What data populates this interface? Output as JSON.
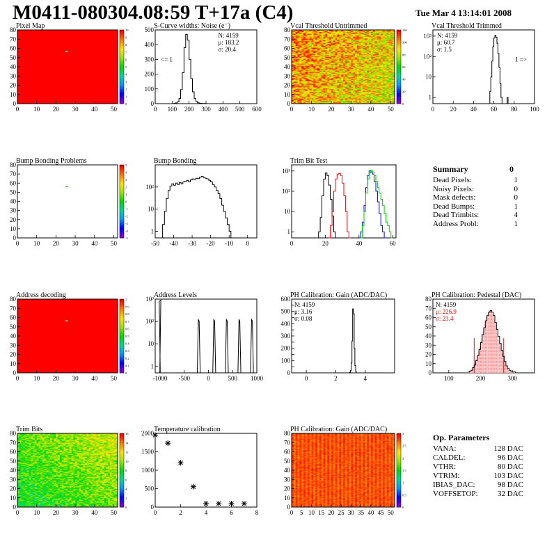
{
  "header": {
    "title": "M0411-080304.08:59 T+17a (C4)",
    "date": "Tue Mar  4 13:14:01 2008"
  },
  "colors": {
    "frame": "#000000",
    "red": "#ff0000",
    "green": "#00cc00",
    "blue": "#0000ee",
    "pink": "#ff9090"
  },
  "summary": {
    "title": "Summary",
    "total": "0",
    "rows": [
      {
        "label": "Dead Pixels:",
        "value": "1"
      },
      {
        "label": "Noisy Pixels:",
        "value": "0"
      },
      {
        "label": "Mask defects:",
        "value": "0"
      },
      {
        "label": "Dead Bumps:",
        "value": "1"
      },
      {
        "label": "Dead Trimbits:",
        "value": "4"
      },
      {
        "label": "Address Probl:",
        "value": "1"
      }
    ]
  },
  "op_params": {
    "title": "Op. Parameters",
    "rows": [
      {
        "label": "VANA:",
        "value": "128 DAC"
      },
      {
        "label": "CALDEL:",
        "value": "96 DAC"
      },
      {
        "label": "VTHR:",
        "value": "80 DAC"
      },
      {
        "label": "VTRIM:",
        "value": "103 DAC"
      },
      {
        "label": "IBIAS_DAC:",
        "value": "98 DAC"
      },
      {
        "label": "VOFFSETOP:",
        "value": "32 DAC"
      }
    ]
  },
  "chart_data": [
    {
      "id": "pixel-map",
      "type": "heatmap",
      "title": "Pixel Map",
      "xlim": [
        0,
        52
      ],
      "ylim": [
        0,
        80
      ],
      "xticks": [
        "0",
        "10",
        "20",
        "30",
        "40",
        "50"
      ],
      "yticks": [
        "0",
        "10",
        "20",
        "30",
        "40",
        "50",
        "60",
        "70",
        "80"
      ],
      "palette": "uniform-red",
      "zlim": [
        0,
        10
      ],
      "zticks": [
        "0",
        "1",
        "2",
        "3",
        "4",
        "5",
        "6",
        "7",
        "8",
        "9",
        "10"
      ],
      "anomalies": [
        {
          "col": 25,
          "row": 56,
          "value": 0
        }
      ]
    },
    {
      "id": "scurve-widths",
      "type": "line",
      "title": "S-Curve widths: Noise (e⁻)",
      "xlim": [
        0,
        600
      ],
      "ylim": [
        0,
        500
      ],
      "xticks": [
        "0",
        "100",
        "200",
        "300",
        "400",
        "500",
        "600"
      ],
      "yticks": [
        "0",
        "100",
        "200",
        "300",
        "400",
        "500"
      ],
      "stats": [
        "N: 4159",
        "μ: 183.2",
        "σ: 20.4"
      ],
      "underflow_label": "<= 1",
      "x": [
        100,
        110,
        120,
        130,
        140,
        150,
        160,
        170,
        180,
        190,
        200,
        210,
        220,
        230,
        240,
        250,
        260,
        270,
        280,
        290,
        300
      ],
      "y": [
        0,
        2,
        5,
        12,
        35,
        95,
        210,
        380,
        470,
        430,
        300,
        170,
        80,
        35,
        15,
        6,
        3,
        2,
        1,
        1,
        0
      ]
    },
    {
      "id": "vcal-untrimmed",
      "type": "heatmap",
      "title": "Vcal Threshold Untrimmed",
      "xlim": [
        0,
        52
      ],
      "ylim": [
        0,
        80
      ],
      "xticks": [
        "0",
        "10",
        "20",
        "30",
        "40",
        "50"
      ],
      "yticks": [
        "0",
        "10",
        "20",
        "30",
        "40",
        "50",
        "60",
        "70",
        "80"
      ],
      "palette": "rainbow-noisy-hot",
      "zlim": [
        0,
        120
      ],
      "zticks": [
        "0",
        "20",
        "40",
        "60",
        "80",
        "100",
        "120"
      ]
    },
    {
      "id": "vcal-trimmed",
      "type": "line",
      "title": "Vcal Threshold Trimmed",
      "xlim": [
        0,
        100
      ],
      "ylog": true,
      "ylim": [
        0.5,
        2000
      ],
      "xticks": [
        "0",
        "20",
        "40",
        "60",
        "80",
        "100"
      ],
      "yticks": [
        "1",
        "10",
        "10²",
        "10³"
      ],
      "stats": [
        "N: 4159",
        "μ: 60.7",
        "σ:  1.5"
      ],
      "overflow_label": "1 =>",
      "x": [
        55,
        56,
        57,
        58,
        59,
        60,
        61,
        62,
        63,
        64,
        65,
        66,
        67,
        68,
        69,
        70,
        71,
        72,
        73,
        74
      ],
      "y": [
        0,
        2,
        10,
        60,
        300,
        800,
        1100,
        900,
        450,
        140,
        30,
        5,
        1,
        0,
        0,
        0,
        0,
        0,
        1,
        0
      ]
    },
    {
      "id": "bump-problems",
      "type": "heatmap",
      "title": "Bump Bonding Problems",
      "xlim": [
        0,
        52
      ],
      "ylim": [
        0,
        80
      ],
      "xticks": [
        "0",
        "10",
        "20",
        "30",
        "40",
        "50"
      ],
      "yticks": [
        "0",
        "10",
        "20",
        "30",
        "40",
        "50",
        "60",
        "70",
        "80"
      ],
      "palette": "empty",
      "zlim": [
        -5,
        5
      ],
      "zticks": [
        "-5",
        "-4",
        "-3",
        "-2",
        "-1",
        "0",
        "1",
        "2",
        "3",
        "4",
        "5"
      ],
      "anomalies": [
        {
          "col": 25,
          "row": 56,
          "value": 1
        }
      ]
    },
    {
      "id": "bump-bonding",
      "type": "line",
      "title": "Bump Bonding",
      "xlim": [
        -50,
        5
      ],
      "ylog": true,
      "ylim": [
        0.5,
        1000
      ],
      "xticks": [
        "-50",
        "-40",
        "-30",
        "-20",
        "-10",
        "0"
      ],
      "yticks": [
        "1",
        "10",
        "10²"
      ],
      "x": [
        -47,
        -46,
        -45,
        -44,
        -43,
        -42,
        -41,
        -40,
        -39,
        -38,
        -37,
        -36,
        -35,
        -34,
        -33,
        -32,
        -31,
        -30,
        -29,
        -28,
        -27,
        -26,
        -25,
        -24,
        -23,
        -22,
        -21,
        -20,
        -19,
        -18,
        -17,
        -16,
        -15,
        -14,
        -13,
        -12,
        -11,
        -10,
        -9
      ],
      "y": [
        0,
        2,
        8,
        30,
        70,
        110,
        140,
        120,
        150,
        130,
        160,
        140,
        170,
        180,
        200,
        170,
        210,
        230,
        220,
        250,
        240,
        280,
        300,
        270,
        250,
        230,
        200,
        170,
        130,
        100,
        70,
        50,
        30,
        15,
        8,
        4,
        2,
        1,
        0
      ]
    },
    {
      "id": "trim-bit-test",
      "type": "line",
      "title": "Trim Bit Test",
      "xlim": [
        0,
        62
      ],
      "ylog": true,
      "ylim": [
        0.5,
        2000
      ],
      "xticks": [
        "0",
        "20",
        "40",
        "60"
      ],
      "yticks": [
        "1",
        "10",
        "10²",
        "10³"
      ],
      "series": [
        {
          "color": "#000000",
          "x": [
            15,
            16,
            17,
            18,
            19,
            20,
            21,
            22,
            23,
            24,
            25,
            26
          ],
          "y": [
            0,
            1,
            5,
            60,
            400,
            800,
            600,
            200,
            40,
            6,
            1,
            0
          ]
        },
        {
          "color": "#ff0000",
          "x": [
            22,
            23,
            24,
            25,
            26,
            27,
            28,
            29,
            30,
            31,
            32,
            33,
            34
          ],
          "y": [
            0,
            2,
            10,
            100,
            400,
            700,
            750,
            600,
            250,
            60,
            10,
            1,
            0
          ]
        },
        {
          "color": "#0000ee",
          "x": [
            40,
            41,
            42,
            43,
            44,
            45,
            46,
            47,
            48,
            49,
            50,
            51,
            52,
            53,
            54,
            55
          ],
          "y": [
            0,
            1,
            3,
            20,
            150,
            600,
            1000,
            900,
            700,
            300,
            100,
            30,
            8,
            2,
            1,
            0
          ]
        },
        {
          "color": "#00cc00",
          "x": [
            41,
            42,
            43,
            44,
            45,
            46,
            47,
            48,
            49,
            50,
            51,
            52,
            53,
            54,
            55,
            56,
            57,
            58,
            59
          ],
          "y": [
            0,
            2,
            10,
            80,
            400,
            800,
            1100,
            900,
            600,
            300,
            150,
            80,
            40,
            20,
            8,
            3,
            2,
            1,
            0
          ]
        }
      ]
    },
    {
      "id": "address-decoding",
      "type": "heatmap",
      "title": "Address decoding",
      "xlim": [
        0,
        52
      ],
      "ylim": [
        0,
        80
      ],
      "xticks": [
        "0",
        "10",
        "20",
        "30",
        "40",
        "50"
      ],
      "yticks": [
        "0",
        "10",
        "20",
        "30",
        "40",
        "50",
        "60",
        "70",
        "80"
      ],
      "palette": "uniform-red",
      "zlim": [
        0,
        1
      ],
      "zticks": [
        "0",
        "0.1",
        "0.2",
        "0.3",
        "0.4",
        "0.5",
        "0.6",
        "0.7",
        "0.8",
        "0.9",
        "1"
      ],
      "anomalies": [
        {
          "col": 25,
          "row": 56,
          "value": 0
        }
      ]
    },
    {
      "id": "address-levels",
      "type": "line",
      "title": "Address Levels",
      "xlim": [
        -1100,
        1000
      ],
      "ylog": true,
      "ylim": [
        0.5,
        1000
      ],
      "xticks": [
        "-1000",
        "-500",
        "0",
        "500",
        "1000"
      ],
      "yticks": [
        "1",
        "10",
        "10²",
        "10³"
      ],
      "peaks": [
        {
          "x": -1000,
          "h": 900,
          "w": 10
        },
        {
          "x": -200,
          "h": 120,
          "w": 60
        },
        {
          "x": 120,
          "h": 120,
          "w": 60
        },
        {
          "x": 380,
          "h": 120,
          "w": 60
        },
        {
          "x": 640,
          "h": 120,
          "w": 60
        },
        {
          "x": 900,
          "h": 120,
          "w": 60
        }
      ]
    },
    {
      "id": "ph-gain",
      "type": "line",
      "title": "PH Calibration: Gain (ADC/DAC)",
      "xlim": [
        -1,
        6
      ],
      "ylim": [
        0,
        600
      ],
      "xticks": [
        "0",
        "2",
        "4"
      ],
      "yticks": [
        "0",
        "50",
        "100",
        "150",
        "200",
        "250",
        "300",
        "350",
        "400",
        "450",
        "500",
        "550",
        "600"
      ],
      "stats": [
        "N: 4159",
        "μ: 3.16",
        "σ: 0.08"
      ],
      "x": [
        2.9,
        2.95,
        3.0,
        3.05,
        3.1,
        3.15,
        3.2,
        3.25,
        3.3,
        3.35,
        3.4
      ],
      "y": [
        0,
        5,
        20,
        80,
        260,
        520,
        480,
        200,
        60,
        10,
        0
      ]
    },
    {
      "id": "ph-pedestal",
      "type": "line",
      "title": "PH Calibration: Pedestal (DAC)",
      "xlim": [
        50,
        370
      ],
      "ylim": [
        0,
        85
      ],
      "xticks": [
        "100",
        "200",
        "300"
      ],
      "yticks": [
        "0",
        "10",
        "20",
        "30",
        "40",
        "50",
        "60",
        "70",
        "80"
      ],
      "stats": [
        "N: 4159",
        "μ: 226.9",
        "σ: 23.4"
      ],
      "stats_colors": [
        "#000000",
        "#ff0000",
        "#ff0000"
      ],
      "cut_lines": [
        180,
        273
      ],
      "x": [
        160,
        165,
        170,
        175,
        180,
        185,
        190,
        195,
        200,
        205,
        210,
        215,
        220,
        225,
        230,
        235,
        240,
        245,
        250,
        255,
        260,
        265,
        270,
        275,
        280,
        285,
        290,
        295,
        300,
        305,
        310
      ],
      "y": [
        1,
        2,
        3,
        6,
        9,
        14,
        20,
        27,
        35,
        44,
        52,
        60,
        66,
        70,
        72,
        70,
        66,
        58,
        50,
        42,
        34,
        26,
        19,
        13,
        8,
        5,
        3,
        2,
        1,
        1,
        0
      ]
    },
    {
      "id": "trim-bits",
      "type": "heatmap",
      "title": "Trim Bits",
      "xlim": [
        0,
        52
      ],
      "ylim": [
        0,
        80
      ],
      "xticks": [
        "0",
        "10",
        "20",
        "30",
        "40",
        "50"
      ],
      "yticks": [
        "0",
        "10",
        "20",
        "30",
        "40",
        "50",
        "60",
        "70",
        "80"
      ],
      "palette": "rainbow-green",
      "zlim": [
        0,
        16
      ],
      "zticks": [
        "0",
        "2",
        "4",
        "6",
        "8",
        "10",
        "12",
        "14",
        "16"
      ]
    },
    {
      "id": "temperature-calibration",
      "type": "scatter",
      "title": "Temperature calibration",
      "xlim": [
        0,
        8
      ],
      "ylim": [
        0,
        2100
      ],
      "xticks": [
        "0",
        "2",
        "4",
        "6",
        "8"
      ],
      "yticks": [
        "0",
        "500",
        "1000",
        "1500",
        "2000"
      ],
      "x": [
        0,
        1,
        2,
        3,
        4,
        5,
        6,
        7
      ],
      "y": [
        2050,
        1820,
        1260,
        580,
        100,
        100,
        100,
        100
      ]
    },
    {
      "id": "ph-gain-map",
      "type": "heatmap",
      "title": "PH Calibration: Gain (ADC/DAC)",
      "xlim": [
        0,
        52
      ],
      "ylim": [
        0,
        80
      ],
      "xticks": [
        "0",
        "5",
        "10",
        "15",
        "20",
        "25",
        "30",
        "35",
        "40",
        "45",
        "50"
      ],
      "yticks": [
        "0",
        "10",
        "20",
        "30",
        "40",
        "50",
        "60",
        "70",
        "80"
      ],
      "palette": "red-orange",
      "zlim": [
        0,
        3.2
      ],
      "zticks": [
        "0",
        "0.5",
        "1",
        "1.5",
        "2",
        "2.5",
        "3"
      ]
    }
  ]
}
